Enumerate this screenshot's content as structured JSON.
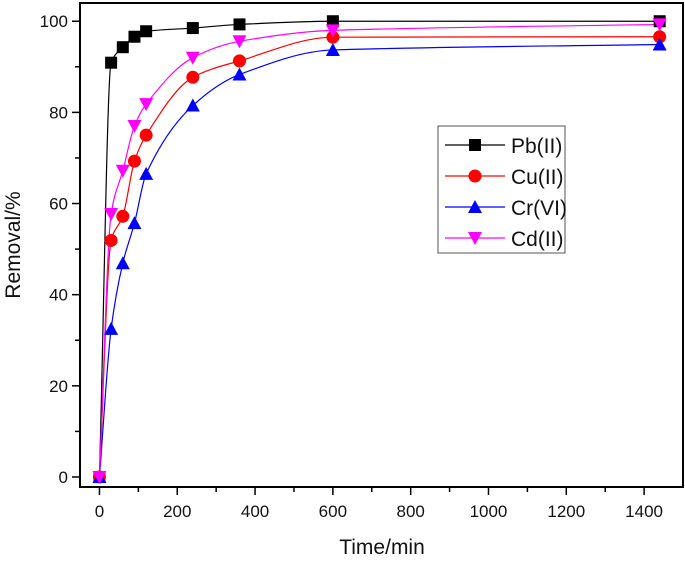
{
  "chart_data": {
    "type": "line",
    "title": "",
    "xlabel": "Time/min",
    "ylabel": "Removal/%",
    "xlim": [
      -50,
      1500
    ],
    "ylim": [
      -2.2,
      104
    ],
    "xticks": [
      0,
      200,
      400,
      600,
      800,
      1000,
      1200,
      1400
    ],
    "yticks": [
      0,
      20,
      40,
      60,
      80,
      100
    ],
    "grid": false,
    "legend_position": "center-right",
    "x": [
      0,
      30,
      60,
      90,
      120,
      240,
      360,
      600,
      1440
    ],
    "series": [
      {
        "name": "Pb(II)",
        "color": "#000000",
        "marker": "square",
        "values": [
          0,
          90.9,
          94.3,
          96.6,
          97.8,
          98.5,
          99.3,
          100,
          100
        ]
      },
      {
        "name": "Cu(II)",
        "color": "#ff0000",
        "marker": "circle",
        "values": [
          0,
          51.9,
          57.2,
          69.3,
          75.0,
          87.7,
          91.3,
          96.5,
          96.6
        ]
      },
      {
        "name": "Cr(VI)",
        "color": "#0000ff",
        "marker": "triangle-up",
        "values": [
          0,
          32.5,
          46.9,
          55.7,
          66.5,
          81.5,
          88.3,
          93.7,
          94.9
        ]
      },
      {
        "name": "Cd(II)",
        "color": "#ff00ff",
        "marker": "triangle-down",
        "values": [
          0,
          57.7,
          67.2,
          77.0,
          81.8,
          92.0,
          95.6,
          98.0,
          99.3
        ]
      }
    ]
  }
}
